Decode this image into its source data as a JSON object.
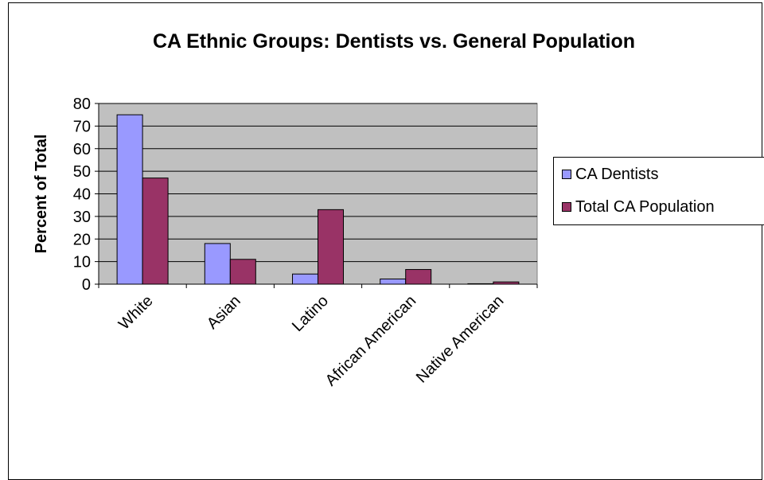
{
  "chart_data": {
    "type": "bar",
    "title": "CA Ethnic Groups: Dentists vs. General Population",
    "xlabel": "",
    "ylabel": "Percent of Total",
    "categories": [
      "White",
      "Asian",
      "Latino",
      "African American",
      "Native American"
    ],
    "series": [
      {
        "name": "CA Dentists",
        "values": [
          75,
          18,
          4.5,
          2.3,
          0.2
        ]
      },
      {
        "name": "Total CA Population",
        "values": [
          47,
          11,
          33,
          6.5,
          1
        ]
      }
    ],
    "ylim": [
      0,
      80
    ],
    "yticks": [
      0,
      10,
      20,
      30,
      40,
      50,
      60,
      70,
      80
    ],
    "grid": true,
    "legend_position": "right",
    "colors": {
      "series": [
        "#9999ff",
        "#993366"
      ],
      "plot_background": "#c0c0c0",
      "gridline": "#000000"
    }
  }
}
